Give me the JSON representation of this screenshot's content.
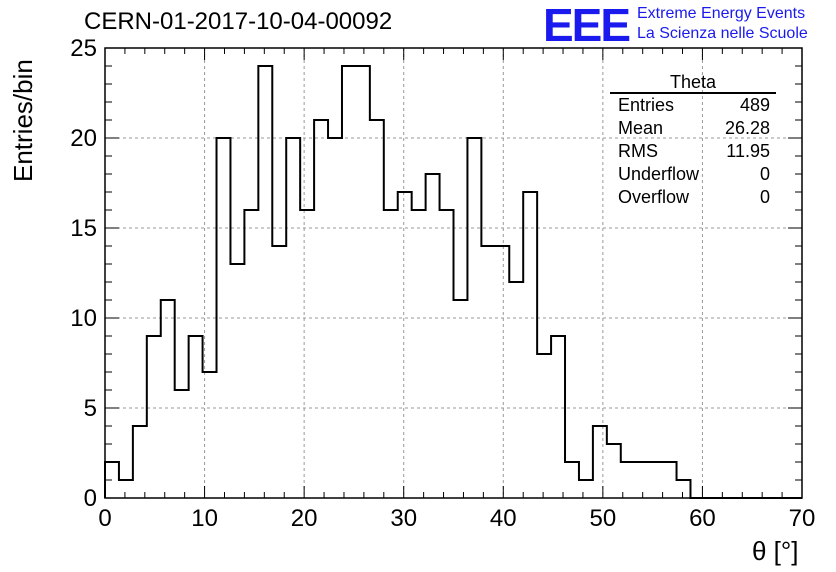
{
  "title": "CERN-01-2017-10-04-00092",
  "logo": {
    "mark": "EEE",
    "line1": "Extreme Energy Events",
    "line2": "La Scienza nelle Scuole",
    "color": "#1a1aee"
  },
  "stats": {
    "header": "Theta",
    "rows": [
      {
        "label": "Entries",
        "value": "489"
      },
      {
        "label": "Mean",
        "value": "26.28"
      },
      {
        "label": "RMS",
        "value": "11.95"
      },
      {
        "label": "Underflow",
        "value": "0"
      },
      {
        "label": "Overflow",
        "value": "0"
      }
    ]
  },
  "chart_data": {
    "type": "histogram",
    "xlabel": "θ [°]",
    "ylabel": "Entries/bin",
    "xlim": [
      0,
      70
    ],
    "ylim": [
      0,
      25
    ],
    "x_ticks": [
      0,
      10,
      20,
      30,
      40,
      50,
      60,
      70
    ],
    "x_tick_labels": [
      "0",
      "10",
      "20",
      "30",
      "40",
      "50",
      "60",
      "70"
    ],
    "y_ticks": [
      0,
      5,
      10,
      15,
      20,
      25
    ],
    "y_tick_labels": [
      "0",
      "5",
      "10",
      "15",
      "20",
      "25"
    ],
    "grid": true,
    "bin_width": 1.4,
    "bins_start": 0,
    "counts": [
      2,
      1,
      4,
      9,
      11,
      6,
      9,
      7,
      20,
      13,
      16,
      24,
      14,
      20,
      16,
      21,
      20,
      24,
      24,
      21,
      16,
      17,
      16,
      18,
      16,
      11,
      20,
      14,
      14,
      12,
      17,
      8,
      9,
      2,
      1,
      4,
      3,
      2,
      2,
      2,
      2,
      1,
      0,
      0,
      0,
      0,
      0,
      0,
      0,
      0
    ]
  }
}
